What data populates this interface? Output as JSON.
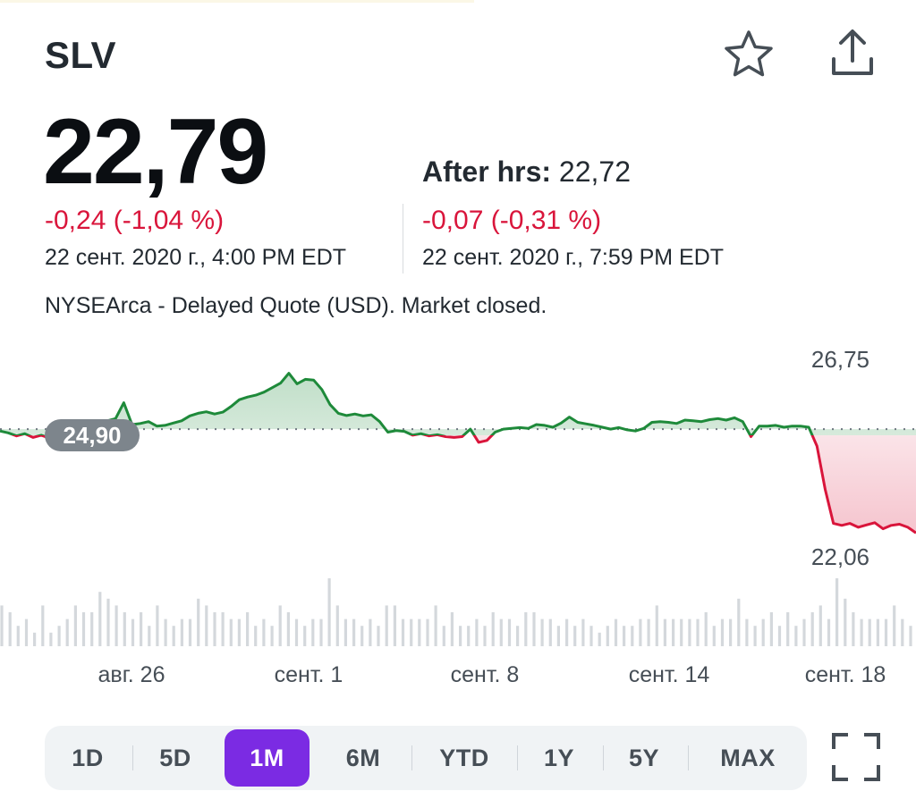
{
  "header": {
    "ticker": "SLV",
    "star_icon": "star-outline-icon",
    "share_icon": "share-upload-icon"
  },
  "quote": {
    "price": "22,79",
    "change": "-0,24 (-1,04 %)",
    "timestamp": "22 сент. 2020 г., 4:00 PM EDT",
    "after_hours_label": "After hrs:",
    "after_hours_price": "22,72",
    "after_hours_change": "-0,07 (-0,31 %)",
    "after_hours_timestamp": "22 сент. 2020 г., 7:59 PM EDT",
    "exchange_note": "NYSEArca - Delayed Quote (USD). Market closed."
  },
  "colors": {
    "up": "#1e8a3a",
    "down": "#d9153b",
    "accent": "#7b2be3",
    "volume": "#d4d8dc"
  },
  "chart_data": {
    "type": "line",
    "title": "",
    "reference_label": "24,90",
    "reference_value": 24.9,
    "y_high_label": "26,75",
    "y_low_label": "22,06",
    "x_tick_labels": [
      "авг. 26",
      "сент. 1",
      "сент. 8",
      "сент. 14",
      "сент. 18"
    ],
    "grid": false,
    "series": [
      {
        "values": [
          24.85,
          24.8,
          24.72,
          24.78,
          24.68,
          24.74,
          24.66,
          24.7,
          24.6,
          24.72,
          24.82,
          24.9,
          25.05,
          25.12,
          25.18,
          25.6,
          25.02,
          25.05,
          25.1,
          24.98,
          25.0,
          25.06,
          25.12,
          25.25,
          25.32,
          25.36,
          25.3,
          25.35,
          25.5,
          25.68,
          25.75,
          25.8,
          25.88,
          26.0,
          26.12,
          26.38,
          26.1,
          26.22,
          26.2,
          25.95,
          25.55,
          25.32,
          25.26,
          25.3,
          25.25,
          25.28,
          25.1,
          24.82,
          24.86,
          24.84,
          24.74,
          24.78,
          24.72,
          24.75,
          24.7,
          24.68,
          24.7,
          24.9,
          24.55,
          24.6,
          24.82,
          24.9,
          24.92,
          24.94,
          24.92,
          25.02,
          25.0,
          24.95,
          25.06,
          25.22,
          25.08,
          25.04,
          25.0,
          24.95,
          24.9,
          24.94,
          24.88,
          24.85,
          24.92,
          25.08,
          25.1,
          25.08,
          25.05,
          25.14,
          25.12,
          25.1,
          25.15,
          25.18,
          25.14,
          25.2,
          25.1,
          24.7,
          24.98,
          24.98,
          25.0,
          24.95,
          24.98,
          24.98,
          24.95,
          24.45,
          23.3,
          22.4,
          22.35,
          22.4,
          22.3,
          22.36,
          22.42,
          22.26,
          22.35,
          22.38,
          22.3,
          22.15
        ]
      }
    ],
    "volume": [
      6,
      5,
      3,
      4,
      2,
      6,
      2,
      3,
      4,
      6,
      5,
      5,
      8,
      7,
      6,
      5,
      4,
      5,
      3,
      6,
      4,
      3,
      4,
      4,
      7,
      6,
      5,
      5,
      4,
      4,
      5,
      3,
      4,
      3,
      6,
      5,
      4,
      3,
      4,
      4,
      10,
      6,
      4,
      4,
      3,
      4,
      3,
      6,
      6,
      4,
      4,
      4,
      4,
      6,
      3,
      5,
      3,
      3,
      4,
      3,
      5,
      4,
      4,
      3,
      5,
      5,
      4,
      4,
      3,
      4,
      3,
      4,
      3,
      2,
      3,
      4,
      3,
      3,
      4,
      4,
      6,
      4,
      4,
      4,
      4,
      4,
      5,
      3,
      4,
      4,
      7,
      4,
      3,
      4,
      5,
      3,
      5,
      3,
      4,
      5,
      6,
      4,
      10,
      7,
      5,
      4,
      4,
      4,
      4,
      6,
      4,
      3
    ]
  },
  "range_selector": {
    "options": [
      "1D",
      "5D",
      "1M",
      "6M",
      "YTD",
      "1Y",
      "5Y",
      "MAX"
    ],
    "active": "1M",
    "fullscreen_icon": "fullscreen-expand-icon"
  }
}
